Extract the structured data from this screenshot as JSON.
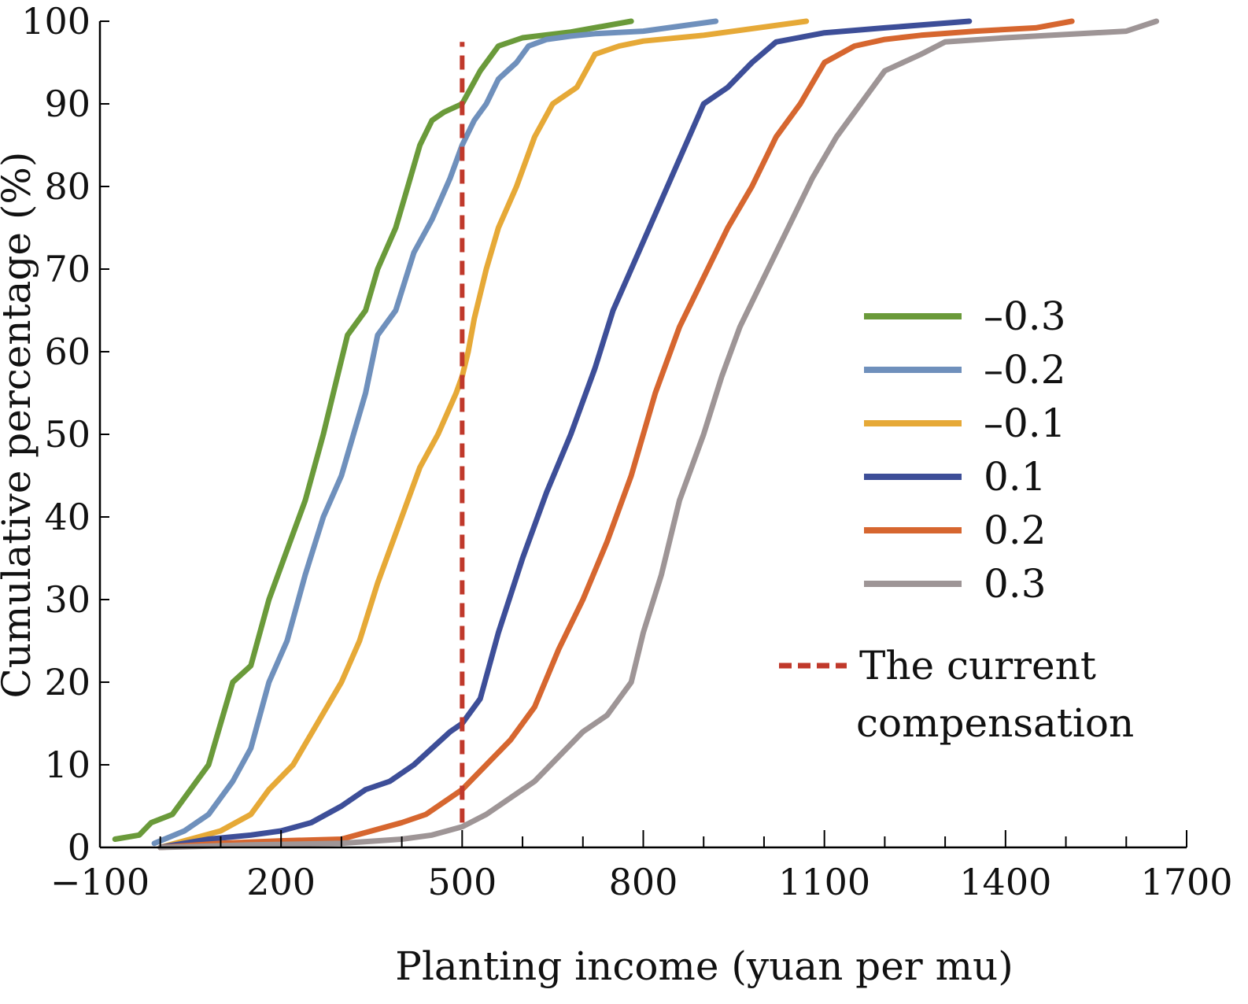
{
  "chart_data": {
    "type": "line",
    "title": "",
    "xlabel": "Planting income (yuan per mu)",
    "ylabel": "Cumulative percentage (%)",
    "xlim": [
      -100,
      1700
    ],
    "ylim": [
      0,
      100
    ],
    "x_ticks": [
      -100,
      200,
      500,
      800,
      1100,
      1400,
      1700
    ],
    "x_tick_labels": [
      "−100",
      "200",
      "500",
      "800",
      "1100",
      "1400",
      "1700"
    ],
    "y_ticks": [
      0,
      10,
      20,
      30,
      40,
      50,
      60,
      70,
      80,
      90,
      100
    ],
    "y_tick_labels": [
      "0",
      "10",
      "20",
      "30",
      "40",
      "50",
      "60",
      "70",
      "80",
      "90",
      "100"
    ],
    "grid": false,
    "legend_position": "right",
    "series": [
      {
        "name": "–0.3",
        "color": "#6a9a3a",
        "x": [
          -75,
          -35,
          -15,
          20,
          50,
          80,
          100,
          120,
          150,
          180,
          210,
          240,
          270,
          290,
          310,
          340,
          360,
          390,
          410,
          430,
          450,
          470,
          500,
          530,
          560,
          600,
          680,
          780
        ],
        "y": [
          1,
          1.5,
          3,
          4,
          7,
          10,
          15,
          20,
          22,
          30,
          36,
          42,
          50,
          56,
          62,
          65,
          70,
          75,
          80,
          85,
          88,
          89,
          90,
          94,
          97,
          98,
          98.7,
          100
        ]
      },
      {
        "name": "–0.2",
        "color": "#6f90bc",
        "x": [
          -10,
          40,
          80,
          120,
          150,
          180,
          210,
          240,
          270,
          300,
          340,
          360,
          390,
          420,
          450,
          480,
          500,
          520,
          540,
          560,
          590,
          610,
          640,
          680,
          720,
          800,
          920
        ],
        "y": [
          0.5,
          2,
          4,
          8,
          12,
          20,
          25,
          33,
          40,
          45,
          55,
          62,
          65,
          72,
          76,
          81,
          85,
          88,
          90,
          93,
          95,
          97,
          97.8,
          98.2,
          98.5,
          98.8,
          100
        ]
      },
      {
        "name": "–0.1",
        "color": "#e6a937",
        "x": [
          0,
          50,
          100,
          150,
          180,
          220,
          260,
          300,
          330,
          360,
          400,
          430,
          460,
          490,
          500,
          510,
          520,
          540,
          560,
          590,
          620,
          650,
          690,
          720,
          760,
          800,
          900,
          1070
        ],
        "y": [
          0,
          1,
          2,
          4,
          7,
          10,
          15,
          20,
          25,
          32,
          40,
          46,
          50,
          55,
          57,
          60,
          64,
          70,
          75,
          80,
          86,
          90,
          92,
          96,
          97,
          97.6,
          98.3,
          100
        ]
      },
      {
        "name": "0.1",
        "color": "#3d4e98",
        "x": [
          0,
          80,
          150,
          200,
          250,
          300,
          340,
          380,
          420,
          450,
          480,
          500,
          530,
          560,
          600,
          640,
          680,
          720,
          750,
          780,
          810,
          840,
          870,
          900,
          940,
          980,
          1020,
          1100,
          1200,
          1340
        ],
        "y": [
          0,
          1,
          1.5,
          2,
          3,
          5,
          7,
          8,
          10,
          12,
          14,
          15,
          18,
          26,
          35,
          43,
          50,
          58,
          65,
          70,
          75,
          80,
          85,
          90,
          92,
          95,
          97.5,
          98.6,
          99.2,
          100
        ]
      },
      {
        "name": "0.2",
        "color": "#d6662f",
        "x": [
          0,
          100,
          200,
          300,
          350,
          400,
          440,
          480,
          500,
          540,
          580,
          620,
          660,
          700,
          740,
          780,
          820,
          860,
          900,
          940,
          980,
          1020,
          1060,
          1100,
          1150,
          1200,
          1260,
          1350,
          1450,
          1510
        ],
        "y": [
          0,
          0.5,
          0.8,
          1,
          2,
          3,
          4,
          6,
          7,
          10,
          13,
          17,
          24,
          30,
          37,
          45,
          55,
          63,
          69,
          75,
          80,
          86,
          90,
          95,
          97,
          97.8,
          98.3,
          98.8,
          99.2,
          100
        ]
      },
      {
        "name": "0.3",
        "color": "#9e9596",
        "x": [
          0,
          150,
          300,
          400,
          450,
          500,
          540,
          580,
          620,
          660,
          700,
          740,
          780,
          800,
          830,
          860,
          900,
          930,
          960,
          1000,
          1040,
          1080,
          1120,
          1160,
          1200,
          1260,
          1300,
          1400,
          1500,
          1600,
          1650
        ],
        "y": [
          0,
          0.3,
          0.5,
          1,
          1.5,
          2.5,
          4,
          6,
          8,
          11,
          14,
          16,
          20,
          26,
          33,
          42,
          50,
          57,
          63,
          69,
          75,
          81,
          86,
          90,
          94,
          96,
          97.5,
          98,
          98.4,
          98.8,
          100
        ]
      }
    ],
    "reference_line": {
      "label": "The current compensation",
      "x": 500,
      "y_range": [
        3,
        97.5
      ],
      "color": "#c0392b",
      "style": "dashed"
    },
    "legend_entries": [
      {
        "series": "–0.3"
      },
      {
        "series": "–0.2"
      },
      {
        "series": "–0.1"
      },
      {
        "series": "0.1"
      },
      {
        "series": "0.2"
      },
      {
        "series": "0.3"
      }
    ],
    "reference_legend": {
      "line1": "The current",
      "line2": "compensation"
    }
  }
}
